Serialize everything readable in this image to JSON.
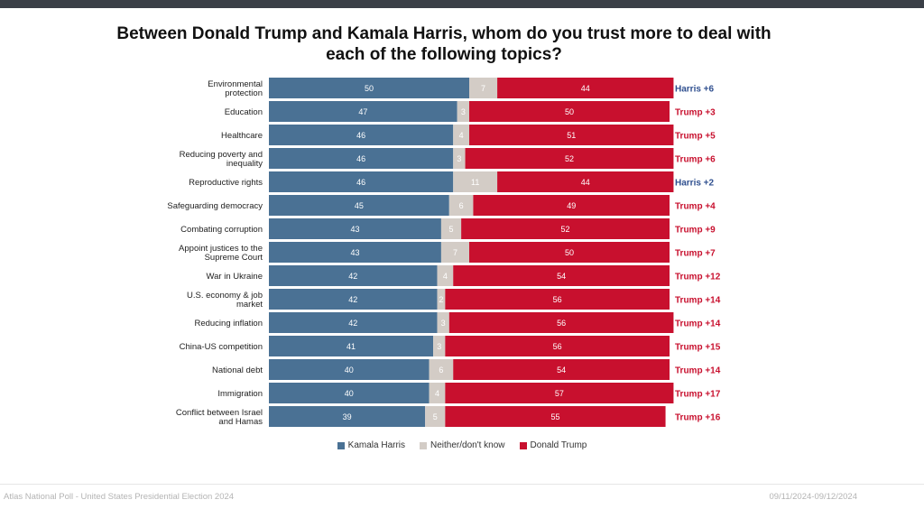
{
  "colors": {
    "harris": "#4a7194",
    "neither": "#d3ccc6",
    "trump": "#c8102e",
    "lead_harris": "#2f4f8f",
    "lead_trump": "#c8102e"
  },
  "chart_data": {
    "type": "bar",
    "orientation": "horizontal",
    "stacked": true,
    "title": "Between Donald Trump and Kamala Harris, whom do you trust more to deal with each of the following topics?",
    "categories": [
      [
        "Environmental",
        "protection"
      ],
      [
        "Education"
      ],
      [
        "Healthcare"
      ],
      [
        "Reducing poverty and",
        "inequality"
      ],
      [
        "Reproductive rights"
      ],
      [
        "Safeguarding democracy"
      ],
      [
        "Combating corruption"
      ],
      [
        "Appoint justices to the",
        "Supreme Court"
      ],
      [
        "War in Ukraine"
      ],
      [
        "U.S. economy & job",
        "market"
      ],
      [
        "Reducing inflation"
      ],
      [
        "China-US competition"
      ],
      [
        "National debt"
      ],
      [
        "Immigration"
      ],
      [
        "Conflict between Israel",
        "and Hamas"
      ]
    ],
    "series": [
      {
        "name": "Kamala Harris",
        "values": [
          50,
          47,
          46,
          46,
          46,
          45,
          43,
          43,
          42,
          42,
          42,
          41,
          40,
          40,
          39
        ]
      },
      {
        "name": "Neither/don't know",
        "values": [
          7,
          3,
          4,
          3,
          11,
          6,
          5,
          7,
          4,
          2,
          3,
          3,
          6,
          4,
          5
        ]
      },
      {
        "name": "Donald Trump",
        "values": [
          44,
          50,
          51,
          52,
          44,
          49,
          52,
          50,
          54,
          56,
          56,
          56,
          54,
          57,
          55
        ]
      }
    ],
    "leads": [
      "Harris +6",
      "Trump +3",
      "Trump +5",
      "Trump +6",
      "Harris +2",
      "Trump +4",
      "Trump +9",
      "Trump +7",
      "Trump +12",
      "Trump +14",
      "Trump +14",
      "Trump +15",
      "Trump +14",
      "Trump +17",
      "Trump +16"
    ],
    "legend_position": "bottom-center",
    "xlim": [
      0,
      100
    ]
  },
  "footer": {
    "source": "Atlas National Poll - United States Presidential Election 2024",
    "date": "09/11/2024-09/12/2024"
  }
}
